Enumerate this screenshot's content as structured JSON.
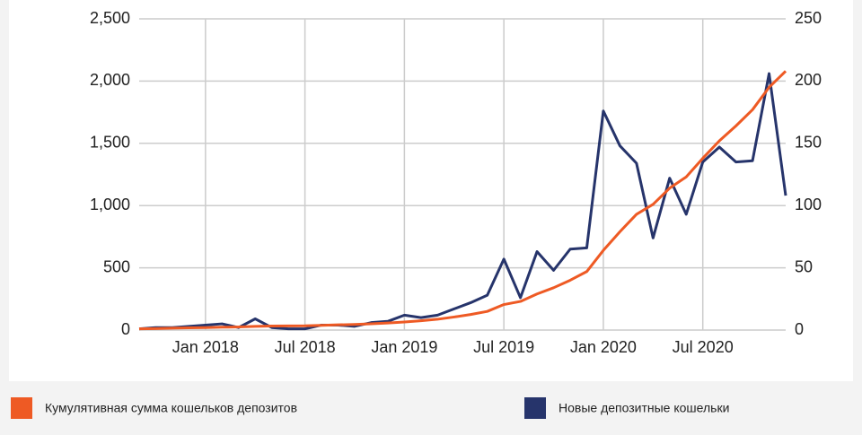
{
  "chart_data": {
    "type": "line",
    "x": [
      "Sep 2017",
      "Oct 2017",
      "Nov 2017",
      "Dec 2017",
      "Jan 2018",
      "Feb 2018",
      "Mar 2018",
      "Apr 2018",
      "May 2018",
      "Jun 2018",
      "Jul 2018",
      "Aug 2018",
      "Sep 2018",
      "Oct 2018",
      "Nov 2018",
      "Dec 2018",
      "Jan 2019",
      "Feb 2019",
      "Mar 2019",
      "Apr 2019",
      "May 2019",
      "Jun 2019",
      "Jul 2019",
      "Aug 2019",
      "Sep 2019",
      "Oct 2019",
      "Nov 2019",
      "Dec 2019",
      "Jan 2020",
      "Feb 2020",
      "Mar 2020",
      "Apr 2020",
      "May 2020",
      "Jun 2020",
      "Jul 2020",
      "Aug 2020",
      "Sep 2020",
      "Oct 2020",
      "Nov 2020",
      "Dec 2020"
    ],
    "xticks": [
      "Jan 2018",
      "Jul 2018",
      "Jan 2019",
      "Jul 2019",
      "Jan 2020",
      "Jul 2020"
    ],
    "series": [
      {
        "name": "Кумулятивная сумма кошельков депозитов",
        "color": "#ee5a24",
        "values": [
          10,
          12,
          15,
          18,
          20,
          23,
          25,
          30,
          32,
          33,
          34,
          38,
          42,
          45,
          50,
          57,
          65,
          75,
          87,
          105,
          125,
          150,
          205,
          230,
          290,
          340,
          400,
          470,
          640,
          790,
          930,
          1010,
          1140,
          1230,
          1380,
          1520,
          1640,
          1770,
          1950,
          2080
        ]
      },
      {
        "name": "Новые депозитные кошельки",
        "color": "#26346b",
        "axis": "y2",
        "values": [
          1,
          2,
          2,
          3,
          4,
          5,
          2,
          9,
          2,
          1,
          1,
          4,
          4,
          3,
          6,
          7,
          12,
          10,
          12,
          17,
          22,
          28,
          57,
          26,
          63,
          48,
          65,
          66,
          176,
          148,
          134,
          74,
          122,
          93,
          135,
          147,
          135,
          136,
          206,
          108
        ]
      }
    ],
    "ylim": [
      0,
      2500
    ],
    "yticks": [
      0,
      500,
      {
        "value": 1000,
        "label": "1,000"
      },
      {
        "value": 1500,
        "label": "1,500"
      },
      {
        "value": 2000,
        "label": "2,000"
      },
      {
        "value": 2500,
        "label": "2,500"
      }
    ],
    "y2lim": [
      0,
      250
    ],
    "y2ticks": [
      0,
      50,
      100,
      150,
      200,
      250
    ],
    "grid": true
  }
}
